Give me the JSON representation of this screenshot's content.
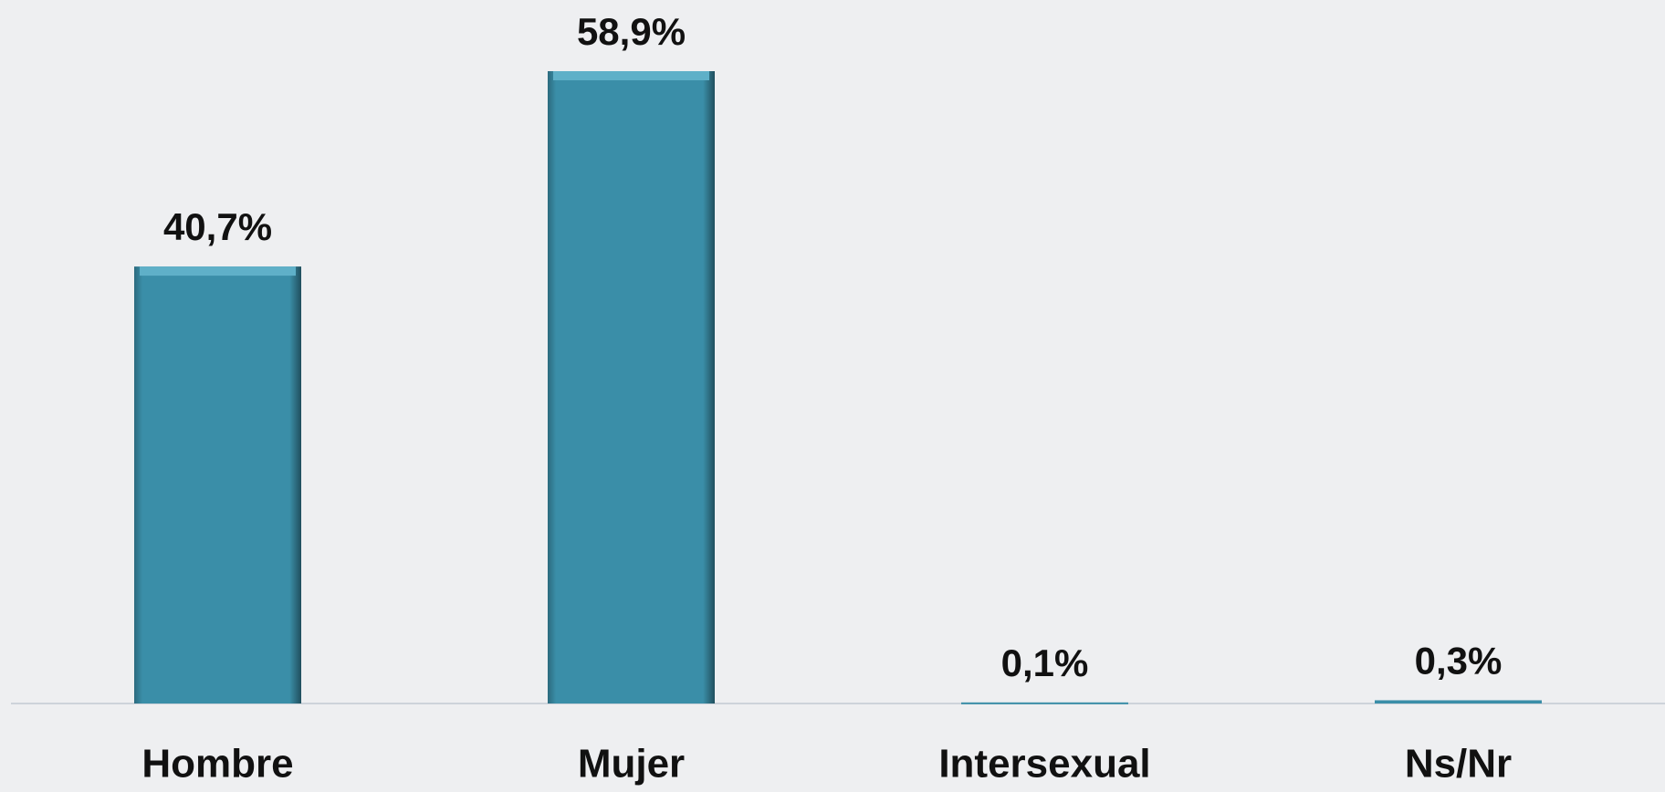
{
  "chart_data": {
    "type": "bar",
    "categories": [
      "Hombre",
      "Mujer",
      "Intersexual",
      "Ns/Nr"
    ],
    "values": [
      40.7,
      58.9,
      0.1,
      0.3
    ],
    "value_labels": [
      "40,7%",
      "58,9%",
      "0,1%",
      "0,3%"
    ],
    "color": "#3a8ea8"
  }
}
